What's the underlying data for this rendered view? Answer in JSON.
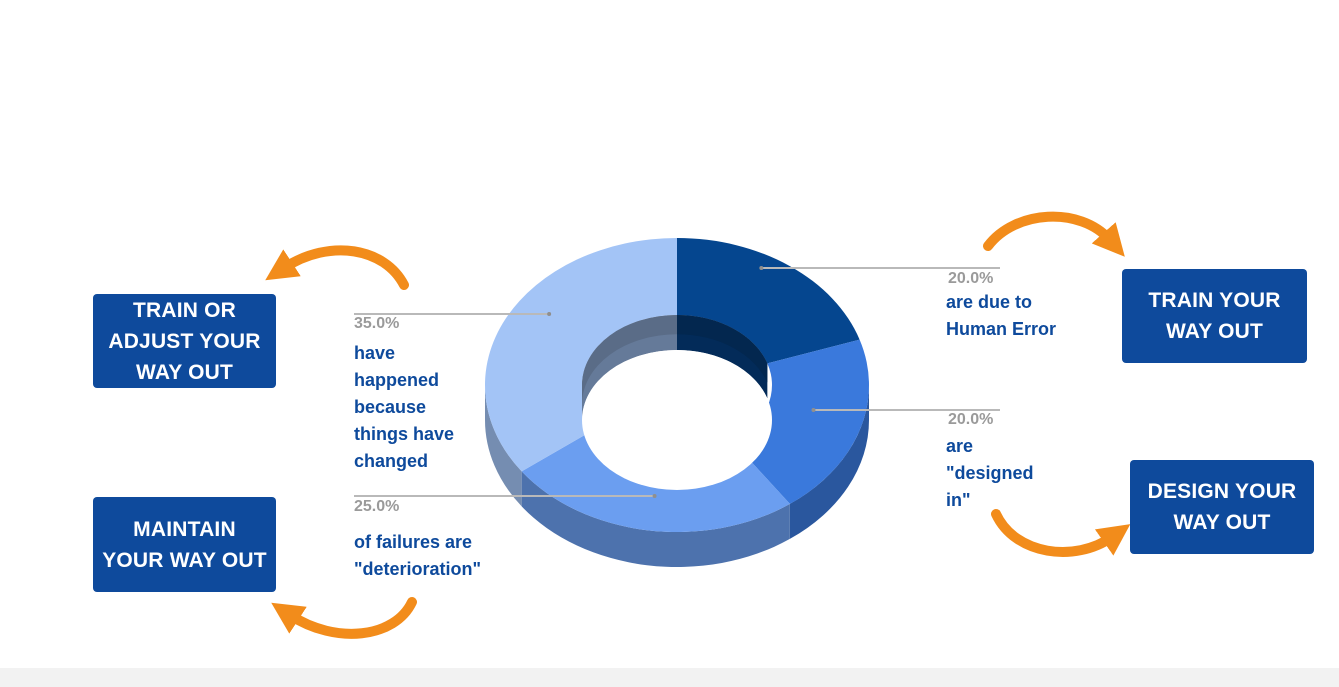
{
  "chart_data": {
    "type": "pie",
    "style": "3d-donut",
    "categories": [
      "Human Error",
      "Designed in",
      "Deterioration",
      "Things have changed"
    ],
    "values": [
      20.0,
      20.0,
      25.0,
      35.0
    ],
    "value_labels": [
      "20.0%",
      "20.0%",
      "25.0%",
      "35.0%"
    ],
    "colors": {
      "human_error": "#05468f",
      "designed_in": "#3a79dc",
      "deterioration": "#6b9ef0",
      "changed": "#a3c4f6"
    },
    "legend": "none",
    "grid": false
  },
  "annotations": {
    "human_error": {
      "pct": "20.0%",
      "lines": [
        "are due to",
        "Human Error"
      ]
    },
    "designed_in": {
      "pct": "20.0%",
      "lines": [
        "are",
        "\"designed",
        "in\""
      ]
    },
    "deterioration": {
      "pct": "25.0%",
      "lines": [
        "of failures are",
        "\"deterioration\""
      ]
    },
    "changed": {
      "pct": "35.0%",
      "lines": [
        "have",
        "happened",
        "because",
        "things have",
        "changed"
      ]
    }
  },
  "boxes": {
    "train_adjust": [
      "TRAIN OR",
      "ADJUST YOUR",
      "WAY OUT"
    ],
    "maintain": [
      "MAINTAIN",
      "YOUR WAY OUT"
    ],
    "train": [
      "TRAIN YOUR",
      "WAY OUT"
    ],
    "design": [
      "DESIGN YOUR",
      "WAY OUT"
    ]
  },
  "colors": {
    "box_fill": "#0e4a9c",
    "text_blue": "#0e4a9c",
    "arrow": "#f28c1b",
    "leader": "#b9b9b9"
  }
}
